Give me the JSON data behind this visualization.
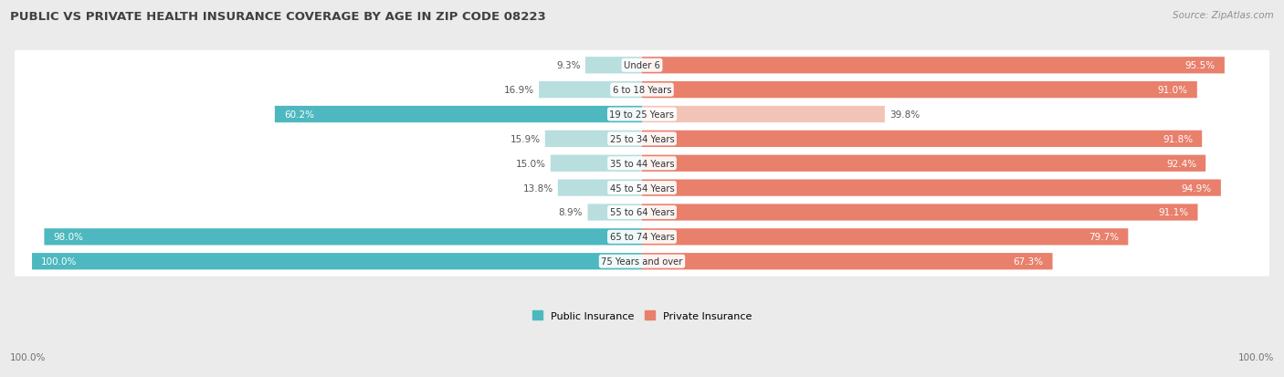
{
  "title": "PUBLIC VS PRIVATE HEALTH INSURANCE COVERAGE BY AGE IN ZIP CODE 08223",
  "source": "Source: ZipAtlas.com",
  "categories": [
    "Under 6",
    "6 to 18 Years",
    "19 to 25 Years",
    "25 to 34 Years",
    "35 to 44 Years",
    "45 to 54 Years",
    "55 to 64 Years",
    "65 to 74 Years",
    "75 Years and over"
  ],
  "public_values": [
    9.3,
    16.9,
    60.2,
    15.9,
    15.0,
    13.8,
    8.9,
    98.0,
    100.0
  ],
  "private_values": [
    95.5,
    91.0,
    39.8,
    91.8,
    92.4,
    94.9,
    91.1,
    79.7,
    67.3
  ],
  "public_color": "#4DB8BF",
  "private_color": "#E8806C",
  "public_color_light": "#B8DEDE",
  "private_color_light": "#F2C4B8",
  "bg_color": "#EBEBEB",
  "row_bg_color": "#FFFFFF",
  "row_alt_bg_color": "#F5F5F5",
  "title_color": "#404040",
  "source_color": "#909090",
  "label_white": "#FFFFFF",
  "label_dark": "#555555",
  "figsize": [
    14.06,
    4.14
  ],
  "dpi": 100,
  "pub_large_threshold": 40,
  "priv_large_threshold": 50
}
